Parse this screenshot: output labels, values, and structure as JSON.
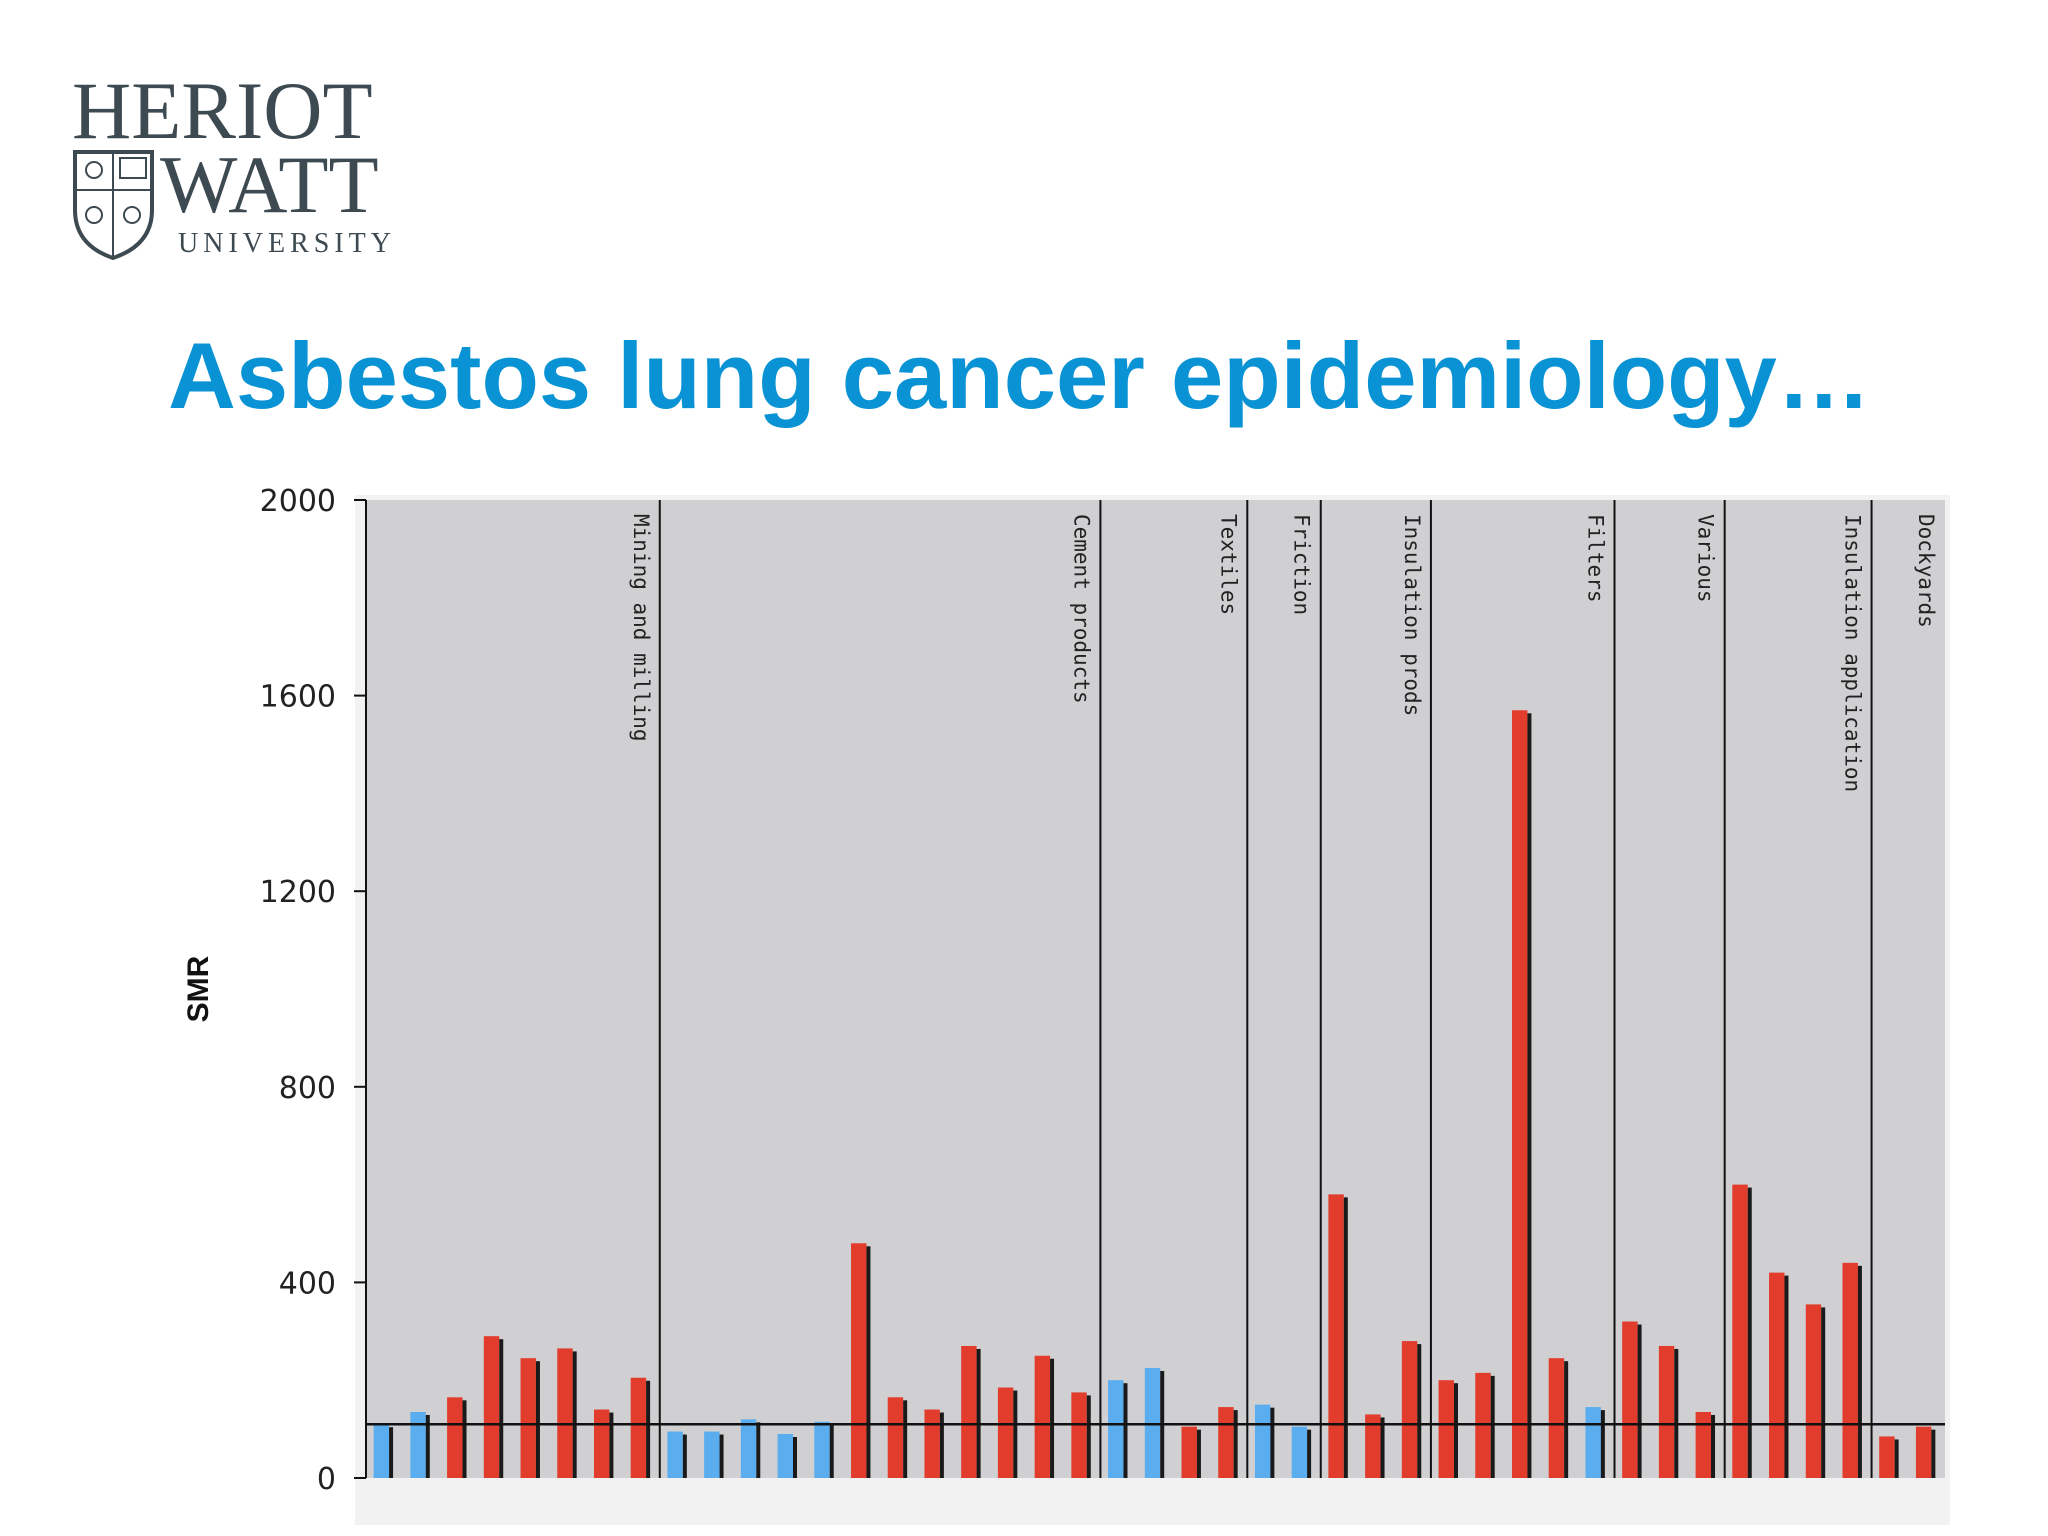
{
  "logo": {
    "line1": "HERIOT",
    "line2": "WATT",
    "line3": "UNIVERSITY"
  },
  "slide": {
    "title": "Asbestos lung cancer epidemiology…"
  },
  "colors": {
    "title": "#0a93d4",
    "logo": "#3e4a52",
    "plot_bg": "#d0d0d2",
    "bar_red": "#e23c2c",
    "bar_blue": "#5aaef0"
  },
  "chart_data": {
    "type": "bar",
    "title": "",
    "ylabel": "SMR",
    "xlabel": "",
    "ylim": [
      0,
      2000
    ],
    "yticks": [
      0,
      400,
      800,
      1200,
      1600,
      2000
    ],
    "reference_line": 110,
    "grid": false,
    "groups": [
      {
        "label": "Mining and milling",
        "values": [
          110,
          135,
          165,
          290,
          245,
          265,
          140,
          205
        ],
        "colors": [
          "blue",
          "blue",
          "red",
          "red",
          "red",
          "red",
          "red",
          "red"
        ]
      },
      {
        "label": "Cement products",
        "values": [
          95,
          95,
          120,
          90,
          115,
          480,
          165,
          140,
          270,
          185,
          250,
          175
        ],
        "colors": [
          "blue",
          "blue",
          "blue",
          "blue",
          "blue",
          "red",
          "red",
          "red",
          "red",
          "red",
          "red",
          "red"
        ]
      },
      {
        "label": "Textiles",
        "values": [
          200,
          225,
          105,
          145
        ],
        "colors": [
          "blue",
          "blue",
          "red",
          "red"
        ]
      },
      {
        "label": "Friction",
        "values": [
          150,
          105
        ],
        "colors": [
          "blue",
          "blue"
        ]
      },
      {
        "label": "Insulation prods",
        "values": [
          580,
          130,
          280
        ],
        "colors": [
          "red",
          "red",
          "red"
        ]
      },
      {
        "label": "Filters",
        "values": [
          200,
          215,
          1570,
          245,
          145
        ],
        "colors": [
          "red",
          "red",
          "red",
          "red",
          "blue"
        ]
      },
      {
        "label": "Various",
        "values": [
          320,
          270,
          135
        ],
        "colors": [
          "red",
          "red",
          "red"
        ]
      },
      {
        "label": "Insulation application",
        "values": [
          600,
          420,
          355,
          440
        ],
        "colors": [
          "red",
          "red",
          "red",
          "red"
        ]
      },
      {
        "label": "Dockyards",
        "values": [
          85,
          105
        ],
        "colors": [
          "red",
          "red"
        ]
      }
    ]
  }
}
